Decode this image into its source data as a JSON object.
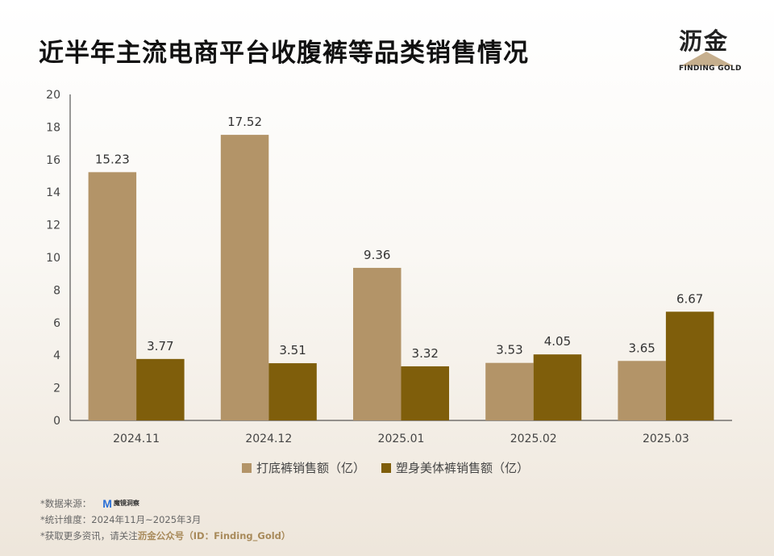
{
  "title": "近半年主流电商平台收腹裤等品类销售情况",
  "logo": {
    "cn": "沥金",
    "en": "FINDING GOLD"
  },
  "colors": {
    "series1": "#b39468",
    "series2": "#7f5e0b",
    "axis": "#333333",
    "tick": "#444444"
  },
  "chart_data": {
    "type": "bar",
    "categories": [
      "2024.11",
      "2024.12",
      "2025.01",
      "2025.02",
      "2025.03"
    ],
    "series": [
      {
        "name": "打底裤销售额（亿）",
        "values": [
          15.23,
          17.52,
          9.36,
          3.53,
          3.65
        ],
        "labels": [
          "15.23",
          "17.52",
          "9.36",
          "3.53",
          "3.65"
        ]
      },
      {
        "name": "塑身美体裤销售额（亿）",
        "values": [
          3.77,
          3.51,
          3.32,
          4.05,
          6.67
        ],
        "labels": [
          "3.77",
          "3.51",
          "3.32",
          "4.05",
          "6.67"
        ]
      }
    ],
    "ylim": [
      0,
      20
    ],
    "yticks": [
      "0",
      "2",
      "4",
      "6",
      "8",
      "10",
      "12",
      "14",
      "16",
      "18",
      "20"
    ],
    "ytick_values": [
      0,
      2,
      4,
      6,
      8,
      10,
      12,
      14,
      16,
      18,
      20
    ],
    "legend_position": "bottom-center",
    "grid": false
  },
  "footer": {
    "source_label": "*数据来源：",
    "source_logo": "M",
    "source_logo_text": "魔镜洞察",
    "dimension": "*统计维度：2024年11月~2025年3月",
    "more_prefix": "*获取更多资讯，请关注",
    "more_highlight": "沥金公众号（ID：Finding_Gold）"
  }
}
